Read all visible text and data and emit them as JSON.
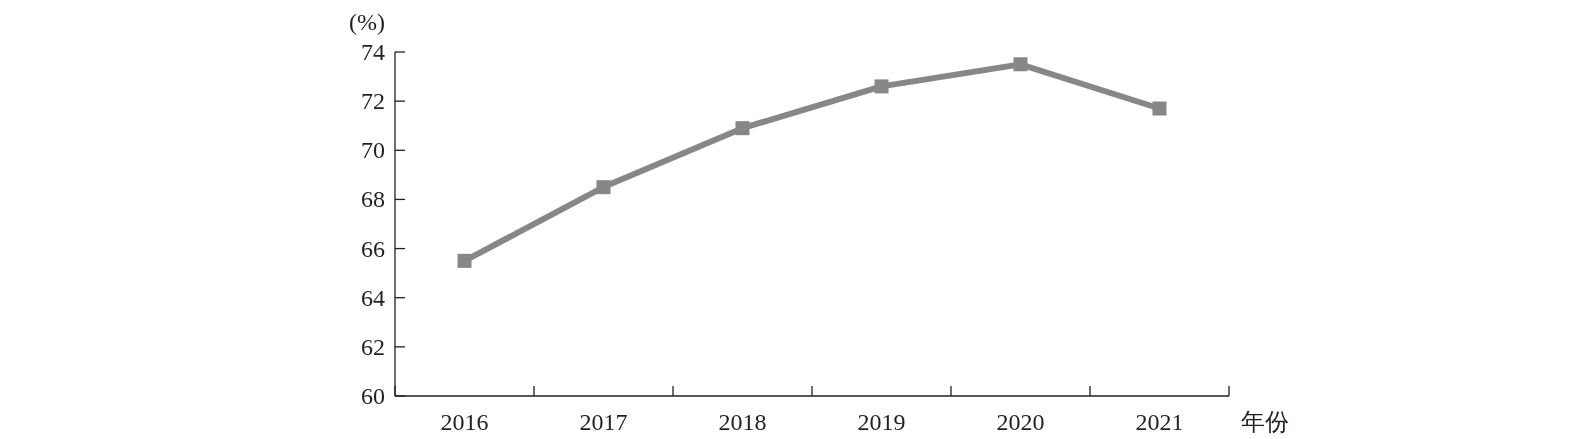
{
  "chart_data": {
    "type": "line",
    "ylabel": "(%)",
    "xlabel": "年份",
    "categories": [
      "2016",
      "2017",
      "2018",
      "2019",
      "2020",
      "2021"
    ],
    "values": [
      65.5,
      68.5,
      70.9,
      72.6,
      73.5,
      71.7
    ],
    "color": "#878787",
    "marker": "square",
    "ylim": [
      60,
      74
    ],
    "yticks": [
      60,
      62,
      64,
      66,
      68,
      70,
      72,
      74
    ]
  }
}
